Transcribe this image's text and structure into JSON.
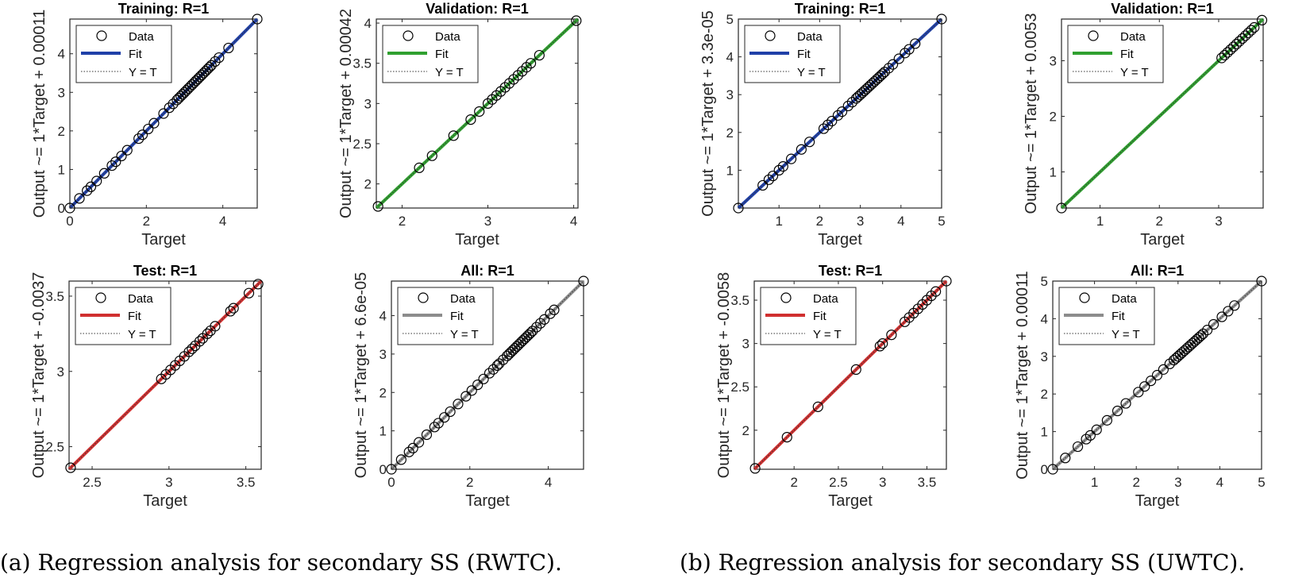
{
  "captions": {
    "a": "(a) Regression analysis for secondary SS (RWTC).",
    "b": "(b) Regression analysis for secondary SS (UWTC)."
  },
  "legend": {
    "data": "Data",
    "fit": "Fit",
    "yt": "Y = T"
  },
  "colors": {
    "training": "#2040a8",
    "validation": "#30a030",
    "test": "#d03030",
    "all": "#8c8c8c"
  },
  "chart_data": [
    {
      "type": "scatter",
      "panel": "a",
      "title": "Training: R=1",
      "xlabel": "Target",
      "ylabel": "Output ~= 1*Target + 0.00011",
      "xlim": [
        0,
        4.9
      ],
      "ylim": [
        0,
        4.9
      ],
      "xticks": [
        0,
        2,
        4
      ],
      "yticks": [
        0,
        1,
        2,
        3,
        4
      ],
      "series_color": "training",
      "points": [
        0,
        0.25,
        0.45,
        0.55,
        0.7,
        0.9,
        1.1,
        1.2,
        1.35,
        1.5,
        1.8,
        1.9,
        2.05,
        2.2,
        2.45,
        2.6,
        2.7,
        2.8,
        2.85,
        2.9,
        2.95,
        3.0,
        3.05,
        3.1,
        3.15,
        3.2,
        3.25,
        3.3,
        3.35,
        3.4,
        3.45,
        3.5,
        3.55,
        3.6,
        3.65,
        3.7,
        3.8,
        3.9,
        4.15,
        4.9
      ]
    },
    {
      "type": "scatter",
      "panel": "a",
      "title": "Validation: R=1",
      "xlabel": "Target",
      "ylabel": "Output ~= 1*Target + 0.00042",
      "xlim": [
        1.7,
        4.05
      ],
      "ylim": [
        1.7,
        4.05
      ],
      "xticks": [
        2,
        3,
        4
      ],
      "yticks": [
        2,
        2.5,
        3,
        3.5,
        4
      ],
      "series_color": "validation",
      "points": [
        1.72,
        2.2,
        2.35,
        2.6,
        2.8,
        2.9,
        3.0,
        3.05,
        3.1,
        3.15,
        3.2,
        3.25,
        3.3,
        3.35,
        3.4,
        3.45,
        3.5,
        3.6,
        4.03
      ]
    },
    {
      "type": "scatter",
      "panel": "a",
      "title": "Test: R=1",
      "xlabel": "Target",
      "ylabel": "Output ~= 1*Target + -0.0037",
      "xlim": [
        2.35,
        3.6
      ],
      "ylim": [
        2.35,
        3.6
      ],
      "xticks": [
        2.5,
        3,
        3.5
      ],
      "yticks": [
        2.5,
        3,
        3.5
      ],
      "series_color": "test",
      "points": [
        2.36,
        2.95,
        2.98,
        3.01,
        3.04,
        3.07,
        3.1,
        3.13,
        3.15,
        3.17,
        3.2,
        3.22,
        3.25,
        3.27,
        3.3,
        3.4,
        3.42,
        3.52,
        3.58
      ]
    },
    {
      "type": "scatter",
      "panel": "a",
      "title": "All: R=1",
      "xlabel": "Target",
      "ylabel": "Output ~= 1*Target + 6.6e-05",
      "xlim": [
        0,
        4.9
      ],
      "ylim": [
        0,
        4.9
      ],
      "xticks": [
        0,
        2,
        4
      ],
      "yticks": [
        0,
        1,
        2,
        3,
        4
      ],
      "series_color": "all",
      "points": [
        0,
        0.25,
        0.45,
        0.55,
        0.7,
        0.9,
        1.1,
        1.2,
        1.35,
        1.5,
        1.7,
        1.9,
        2.05,
        2.2,
        2.35,
        2.5,
        2.6,
        2.7,
        2.75,
        2.85,
        2.95,
        3.0,
        3.05,
        3.1,
        3.15,
        3.2,
        3.25,
        3.3,
        3.35,
        3.4,
        3.45,
        3.5,
        3.55,
        3.6,
        3.7,
        3.8,
        3.9,
        4.05,
        4.15,
        4.9
      ]
    },
    {
      "type": "scatter",
      "panel": "b",
      "title": "Training: R=1",
      "xlabel": "Target",
      "ylabel": "Output ~= 1*Target + 3.3e-05",
      "xlim": [
        0,
        5
      ],
      "ylim": [
        0,
        5
      ],
      "xticks": [
        1,
        2,
        3,
        4,
        5
      ],
      "yticks": [
        1,
        2,
        3,
        4,
        5
      ],
      "series_color": "training",
      "points": [
        0,
        0.6,
        0.75,
        0.85,
        1.0,
        1.1,
        1.3,
        1.55,
        1.75,
        2.1,
        2.2,
        2.3,
        2.45,
        2.55,
        2.7,
        2.8,
        2.9,
        2.95,
        3.0,
        3.05,
        3.1,
        3.15,
        3.2,
        3.25,
        3.3,
        3.35,
        3.4,
        3.45,
        3.5,
        3.55,
        3.6,
        3.7,
        3.8,
        3.95,
        4.1,
        4.2,
        4.35,
        5.0
      ]
    },
    {
      "type": "scatter",
      "panel": "b",
      "title": "Validation: R=1",
      "xlabel": "Target",
      "ylabel": "Output ~= 1*Target + 0.0053",
      "xlim": [
        0.35,
        3.75
      ],
      "ylim": [
        0.35,
        3.75
      ],
      "xticks": [
        1,
        2,
        3
      ],
      "yticks": [
        1,
        2,
        3
      ],
      "series_color": "validation",
      "points": [
        0.35,
        3.05,
        3.1,
        3.15,
        3.2,
        3.25,
        3.3,
        3.35,
        3.4,
        3.45,
        3.5,
        3.55,
        3.6,
        3.73
      ]
    },
    {
      "type": "scatter",
      "panel": "b",
      "title": "Test: R=1",
      "xlabel": "Target",
      "ylabel": "Output ~= 1*Target + -0.0058",
      "xlim": [
        1.55,
        3.72
      ],
      "ylim": [
        1.55,
        3.72
      ],
      "xticks": [
        2,
        2.5,
        3,
        3.5
      ],
      "yticks": [
        2,
        2.5,
        3,
        3.5
      ],
      "series_color": "test",
      "points": [
        1.56,
        1.92,
        2.27,
        2.7,
        2.97,
        3.0,
        3.1,
        3.25,
        3.3,
        3.35,
        3.4,
        3.45,
        3.5,
        3.55,
        3.6,
        3.72
      ]
    },
    {
      "type": "scatter",
      "panel": "b",
      "title": "All: R=1",
      "xlabel": "Target",
      "ylabel": "Output ~= 1*Target + 0.00011",
      "xlim": [
        0,
        5
      ],
      "ylim": [
        0,
        5
      ],
      "xticks": [
        1,
        2,
        3,
        4,
        5
      ],
      "yticks": [
        0,
        1,
        2,
        3,
        4,
        5
      ],
      "series_color": "all",
      "points": [
        0,
        0.3,
        0.6,
        0.8,
        0.9,
        1.05,
        1.3,
        1.55,
        1.75,
        2.05,
        2.2,
        2.35,
        2.5,
        2.65,
        2.8,
        2.9,
        2.95,
        3.0,
        3.05,
        3.1,
        3.15,
        3.2,
        3.25,
        3.3,
        3.35,
        3.4,
        3.45,
        3.5,
        3.55,
        3.6,
        3.7,
        3.85,
        4.05,
        4.2,
        4.35,
        5.0
      ]
    }
  ]
}
